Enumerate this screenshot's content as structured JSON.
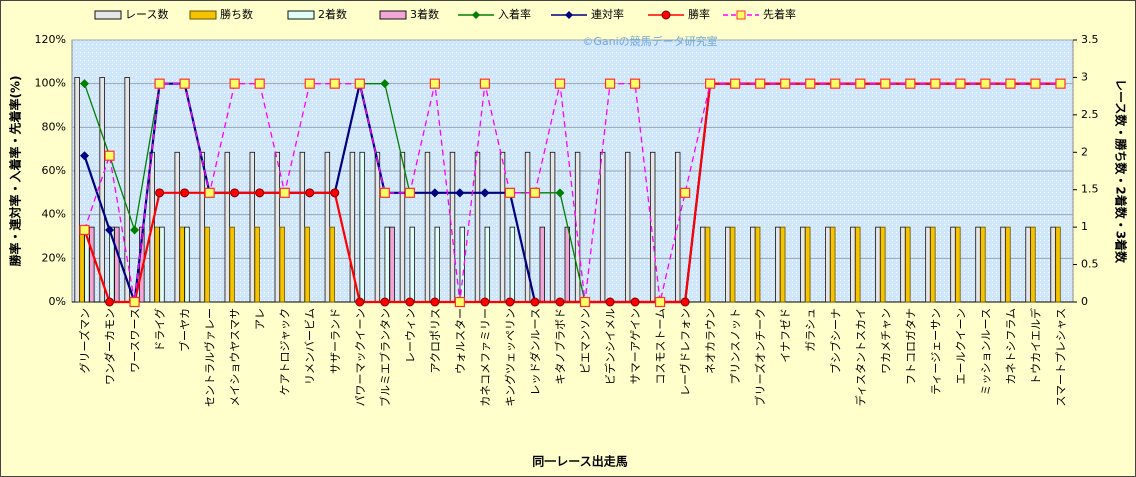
{
  "chart_data": {
    "type": "combo",
    "watermark": "©Ganiの競馬データ研究室",
    "y_label": "勝率・連対率・入着率・先着率(%)",
    "y2_label": "レース数・勝ち数・2着数・3着数",
    "x_label": "同一レース出走馬",
    "categories": [
      "グリーズマン",
      "ワンダーカモン",
      "ワースワース",
      "ドライグ",
      "ブーヤカ",
      "セントラルヴァレー",
      "メイショウヤスマサ",
      "アレ",
      "ケアトロジャック",
      "リメンバービム",
      "サザーランド",
      "パワーマックイーン",
      "ブルミエブランタン",
      "レーウィン",
      "アクロポリス",
      "ウォルスター",
      "カネコメファミリー",
      "キングツェッペリン",
      "レッドダンルース",
      "キタノブラボド",
      "ピエマンソン",
      "ビデンシイメル",
      "サマーアゲイン",
      "コスモストーム",
      "レーヴドレフォン",
      "ネオカラウン",
      "プリンスノット",
      "ブリーズオンチーク",
      "イナフゼド",
      "ガラシュ",
      "ブシブシーナ",
      "ディスタントスカイ",
      "ワカメチャン",
      "フトコロガタナ",
      "ティージェーサン",
      "エールクイーン",
      "ミッションルース",
      "カネトシフラム",
      "トウカイエルデ",
      "スマートプレシャス"
    ],
    "ylim": [
      0,
      120
    ],
    "yticks": [
      {
        "value": 0,
        "label": "0%"
      },
      {
        "value": 20,
        "label": "20%"
      },
      {
        "value": 40,
        "label": "40%"
      },
      {
        "value": 60,
        "label": "60%"
      },
      {
        "value": 80,
        "label": "80%"
      },
      {
        "value": 100,
        "label": "100%"
      },
      {
        "value": 120,
        "label": "120%"
      }
    ],
    "y2lim": [
      0,
      3.5
    ],
    "y2ticks": [
      0,
      0.5,
      1,
      1.5,
      2,
      2.5,
      3,
      3.5
    ],
    "grid": true,
    "series": [
      {
        "name": "レース数",
        "type": "bar",
        "axis": "y2",
        "color": "#e6e6e6",
        "values": [
          3,
          3,
          3,
          2,
          2,
          2,
          2,
          2,
          2,
          2,
          2,
          2,
          2,
          2,
          2,
          2,
          2,
          2,
          2,
          2,
          2,
          2,
          2,
          2,
          2,
          1,
          1,
          1,
          1,
          1,
          1,
          1,
          1,
          1,
          1,
          1,
          1,
          1,
          1,
          1
        ]
      },
      {
        "name": "勝ち数",
        "type": "bar",
        "axis": "y2",
        "color": "#f5c400",
        "values": [
          1,
          0,
          0,
          1,
          1,
          1,
          1,
          1,
          1,
          1,
          1,
          0,
          0,
          0,
          0,
          0,
          0,
          0,
          0,
          0,
          0,
          0,
          0,
          0,
          0,
          1,
          1,
          1,
          1,
          1,
          1,
          1,
          1,
          1,
          1,
          1,
          1,
          1,
          1,
          1
        ]
      },
      {
        "name": "2着数",
        "type": "bar",
        "axis": "y2",
        "color": "#dffff6",
        "values": [
          1,
          1,
          0,
          1,
          1,
          0,
          0,
          0,
          0,
          0,
          0,
          2,
          1,
          1,
          1,
          1,
          1,
          1,
          0,
          0,
          0,
          0,
          0,
          0,
          0,
          0,
          0,
          0,
          0,
          0,
          0,
          0,
          0,
          0,
          0,
          0,
          0,
          0,
          0,
          0
        ]
      },
      {
        "name": "3着数",
        "type": "bar",
        "axis": "y2",
        "color": "#f2a6d6",
        "values": [
          1,
          1,
          1,
          0,
          0,
          0,
          0,
          0,
          0,
          0,
          0,
          0,
          1,
          0,
          0,
          0,
          0,
          0,
          1,
          1,
          0,
          0,
          0,
          0,
          0,
          0,
          0,
          0,
          0,
          0,
          0,
          0,
          0,
          0,
          0,
          0,
          0,
          0,
          0,
          0
        ]
      },
      {
        "name": "入着率",
        "type": "line",
        "color": "#008000",
        "marker": "diamond",
        "dash": false,
        "values": [
          100,
          67,
          33,
          100,
          100,
          50,
          50,
          50,
          50,
          50,
          50,
          100,
          100,
          50,
          50,
          50,
          50,
          50,
          50,
          50,
          0,
          0,
          0,
          0,
          0,
          100,
          100,
          100,
          100,
          100,
          100,
          100,
          100,
          100,
          100,
          100,
          100,
          100,
          100,
          100
        ]
      },
      {
        "name": "連対率",
        "type": "line",
        "color": "#000080",
        "marker": "diamond",
        "dash": false,
        "values": [
          67,
          33,
          0,
          100,
          100,
          50,
          50,
          50,
          50,
          50,
          50,
          100,
          50,
          50,
          50,
          50,
          50,
          50,
          0,
          0,
          0,
          0,
          0,
          0,
          0,
          100,
          100,
          100,
          100,
          100,
          100,
          100,
          100,
          100,
          100,
          100,
          100,
          100,
          100,
          100
        ]
      },
      {
        "name": "勝率",
        "type": "line",
        "color": "#ff0000",
        "marker": "circle",
        "dash": false,
        "values": [
          33,
          0,
          0,
          50,
          50,
          50,
          50,
          50,
          50,
          50,
          50,
          0,
          0,
          0,
          0,
          0,
          0,
          0,
          0,
          0,
          0,
          0,
          0,
          0,
          0,
          100,
          100,
          100,
          100,
          100,
          100,
          100,
          100,
          100,
          100,
          100,
          100,
          100,
          100,
          100
        ]
      },
      {
        "name": "先着率",
        "type": "line",
        "color": "#ff00ff",
        "marker": "square",
        "dash": true,
        "values": [
          33,
          67,
          0,
          100,
          100,
          50,
          100,
          100,
          50,
          100,
          100,
          100,
          50,
          50,
          100,
          0,
          100,
          50,
          50,
          100,
          0,
          100,
          100,
          0,
          50,
          100,
          100,
          100,
          100,
          100,
          100,
          100,
          100,
          100,
          100,
          100,
          100,
          100,
          100,
          100
        ]
      }
    ]
  }
}
